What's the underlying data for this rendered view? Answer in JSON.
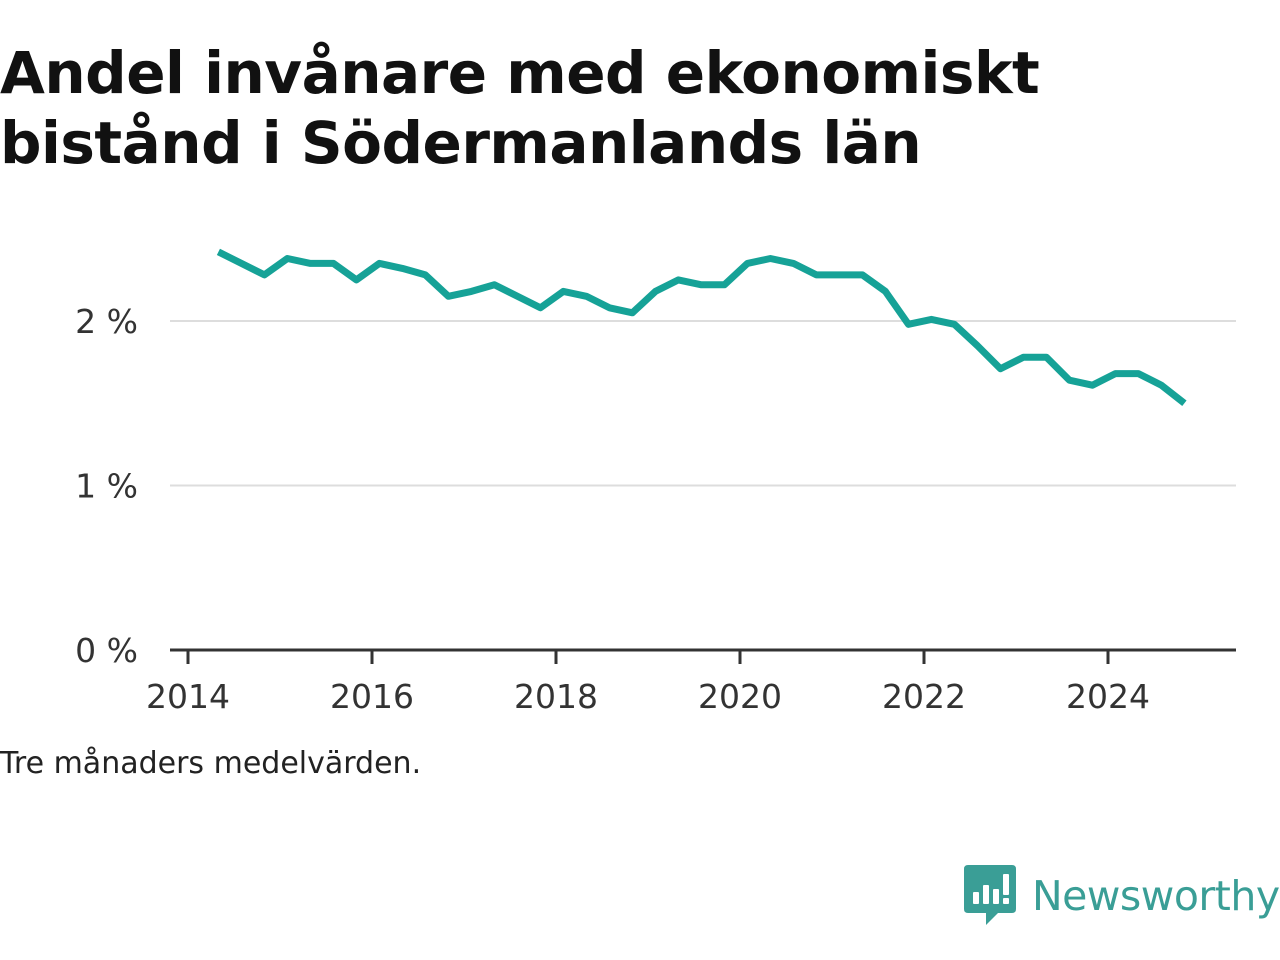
{
  "title": "Andel invånare med ekonomiskt bistånd i Södermanlands län",
  "note": "Tre månaders medelvärden.",
  "brand": {
    "name": "Newsworthy",
    "icon": "newsworthy-logo-icon",
    "color": "#3a9e96"
  },
  "chart_data": {
    "type": "line",
    "title": "Andel invånare med ekonomiskt bistånd i Södermanlands län",
    "xlabel": "",
    "ylabel": "",
    "x_ticks": [
      "2014",
      "2016",
      "2018",
      "2020",
      "2022",
      "2024"
    ],
    "y_ticks": [
      "0 %",
      "1 %",
      "2 %"
    ],
    "xlim": [
      2014.0,
      2025.3
    ],
    "ylim": [
      0,
      2.5
    ],
    "grid": true,
    "legend": "none",
    "series": [
      {
        "color": "#16a297",
        "x": [
          2014.33,
          2014.58,
          2014.83,
          2015.08,
          2015.33,
          2015.58,
          2015.83,
          2016.08,
          2016.33,
          2016.58,
          2016.83,
          2017.08,
          2017.33,
          2017.58,
          2017.83,
          2018.08,
          2018.33,
          2018.58,
          2018.83,
          2019.08,
          2019.33,
          2019.58,
          2019.83,
          2020.08,
          2020.33,
          2020.58,
          2020.83,
          2021.08,
          2021.33,
          2021.58,
          2021.83,
          2022.08,
          2022.33,
          2022.58,
          2022.83,
          2023.08,
          2023.33,
          2023.58,
          2023.83,
          2024.08,
          2024.33,
          2024.58,
          2024.83
        ],
        "y": [
          2.42,
          2.35,
          2.28,
          2.38,
          2.35,
          2.35,
          2.25,
          2.35,
          2.32,
          2.28,
          2.15,
          2.18,
          2.22,
          2.15,
          2.08,
          2.18,
          2.15,
          2.08,
          2.05,
          2.18,
          2.25,
          2.22,
          2.22,
          2.35,
          2.38,
          2.35,
          2.28,
          2.28,
          2.28,
          2.18,
          1.98,
          2.01,
          1.98,
          1.85,
          1.71,
          1.78,
          1.78,
          1.64,
          1.61,
          1.68,
          1.68,
          1.61,
          1.5
        ]
      }
    ]
  }
}
